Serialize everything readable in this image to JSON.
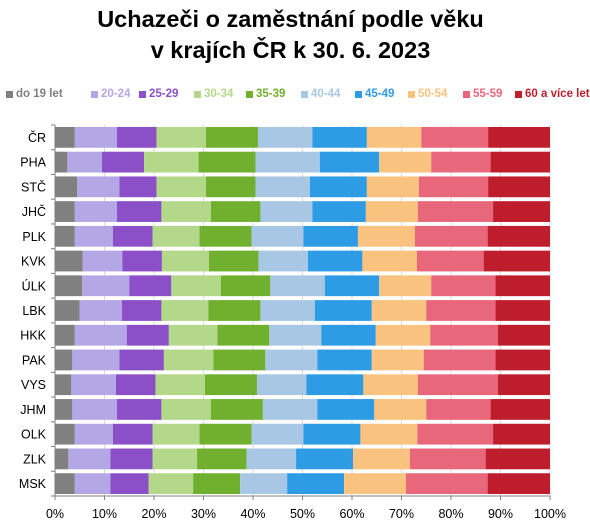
{
  "title": {
    "line1": "Uchazeči o zaměstnání podle věku",
    "line2": "v krajích ČR k 30. 6. 2023"
  },
  "chart_data": {
    "type": "bar",
    "orientation": "horizontal",
    "stacked": "percent",
    "title": "Uchazeči o zaměstnání podle věku v krajích ČR k 30. 6. 2023",
    "categories": [
      "ČR",
      "PHA",
      "STČ",
      "JHČ",
      "PLK",
      "KVK",
      "ÚLK",
      "LBK",
      "HKK",
      "PAK",
      "VYS",
      "JHM",
      "OLK",
      "ZLK",
      "MSK"
    ],
    "xlim": [
      0,
      100
    ],
    "x_ticks": [
      "0%",
      "10%",
      "20%",
      "30%",
      "40%",
      "50%",
      "60%",
      "70%",
      "80%",
      "90%",
      "100%"
    ],
    "grid": "vertical",
    "legend_position": "top",
    "series": [
      {
        "name": "do 19 let",
        "color": "#808080",
        "values": [
          4.0,
          2.5,
          4.5,
          4.0,
          4.0,
          5.6,
          5.5,
          5.0,
          4.0,
          3.5,
          3.3,
          3.5,
          4.0,
          2.7,
          4.0
        ]
      },
      {
        "name": "20-24",
        "color": "#b4a7e5",
        "values": [
          8.5,
          7.0,
          8.5,
          8.5,
          7.7,
          8.0,
          9.5,
          8.5,
          10.5,
          9.5,
          9.0,
          9.0,
          7.7,
          8.5,
          7.2
        ]
      },
      {
        "name": "25-29",
        "color": "#8b4fc8",
        "values": [
          8.0,
          8.5,
          7.5,
          9.0,
          8.0,
          8.0,
          8.5,
          8.0,
          8.5,
          9.0,
          8.0,
          9.0,
          8.0,
          8.5,
          7.7
        ]
      },
      {
        "name": "30-34",
        "color": "#b3d88a",
        "values": [
          10.0,
          11.0,
          10.0,
          10.0,
          9.5,
          9.5,
          10.0,
          9.5,
          9.8,
          10.0,
          10.0,
          10.0,
          9.5,
          9.0,
          9.0
        ]
      },
      {
        "name": "35-39",
        "color": "#70b02e",
        "values": [
          10.5,
          11.5,
          10.0,
          10.0,
          10.5,
          10.0,
          10.0,
          10.5,
          10.5,
          10.5,
          10.5,
          10.5,
          10.5,
          10.0,
          9.5
        ]
      },
      {
        "name": "40-44",
        "color": "#a7c7e4",
        "values": [
          11.0,
          13.0,
          11.0,
          10.5,
          10.5,
          10.0,
          11.0,
          11.0,
          10.5,
          10.5,
          10.0,
          11.0,
          10.5,
          10.0,
          9.5
        ]
      },
      {
        "name": "45-49",
        "color": "#2e9be5",
        "values": [
          11.0,
          12.0,
          11.5,
          10.8,
          11.0,
          11.0,
          11.0,
          11.5,
          11.0,
          11.0,
          11.5,
          11.5,
          11.5,
          11.5,
          11.5
        ]
      },
      {
        "name": "50-54",
        "color": "#f9c27f",
        "values": [
          11.0,
          10.5,
          10.5,
          10.5,
          11.5,
          11.0,
          10.5,
          11.0,
          11.0,
          10.5,
          11.0,
          10.5,
          11.5,
          11.5,
          12.5
        ]
      },
      {
        "name": "55-59",
        "color": "#e8677b",
        "values": [
          13.5,
          12.0,
          14.0,
          15.2,
          14.7,
          13.5,
          13.0,
          14.0,
          13.7,
          14.5,
          16.2,
          13.0,
          15.3,
          15.3,
          16.5
        ]
      },
      {
        "name": "60 a více let",
        "color": "#be1d2c",
        "values": [
          12.5,
          12.0,
          12.5,
          11.5,
          12.6,
          13.4,
          11.0,
          11.0,
          10.5,
          11.0,
          10.5,
          12.0,
          11.5,
          13.0,
          12.6
        ]
      }
    ]
  }
}
